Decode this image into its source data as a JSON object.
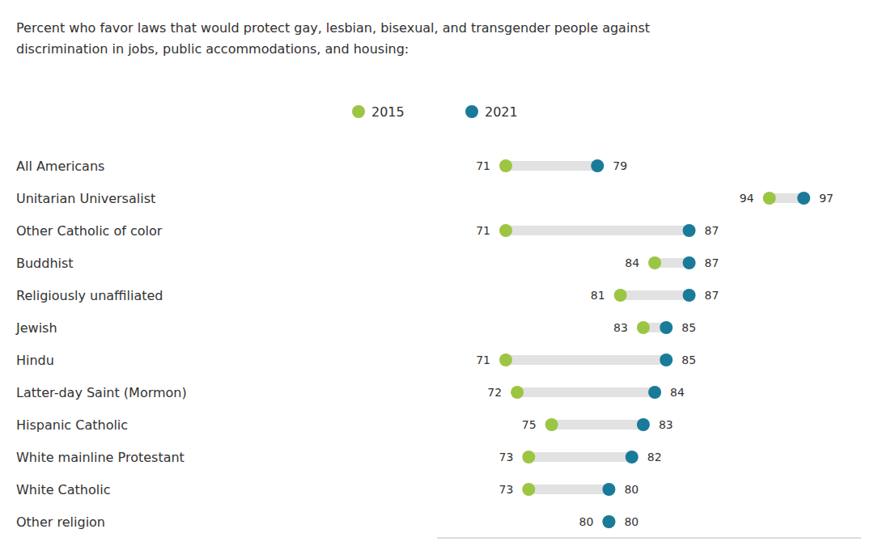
{
  "chart_data": {
    "type": "dumbbell",
    "title": [
      "Percent who favor laws that would protect gay, lesbian, bisexual, and transgender people against",
      "discrimination in jobs, public accommodations, and housing:"
    ],
    "categories": [
      "All Americans",
      "Unitarian Universalist",
      "Other Catholic of color",
      "Buddhist",
      "Religiously unaffiliated",
      "Jewish",
      "Hindu",
      "Latter-day Saint (Mormon)",
      "Hispanic Catholic",
      "White mainline Protestant",
      "White Catholic",
      "Other religion"
    ],
    "series": [
      {
        "name": "2015",
        "color": "#9dc544",
        "values": [
          71,
          94,
          71,
          84,
          81,
          83,
          71,
          72,
          75,
          73,
          73,
          80
        ]
      },
      {
        "name": "2021",
        "color": "#1a7a9a",
        "values": [
          79,
          97,
          87,
          87,
          87,
          85,
          85,
          84,
          83,
          82,
          80,
          80
        ]
      }
    ],
    "xlim": [
      65,
      102
    ],
    "tick_labels": false,
    "data_labels": true,
    "legend": "top"
  }
}
